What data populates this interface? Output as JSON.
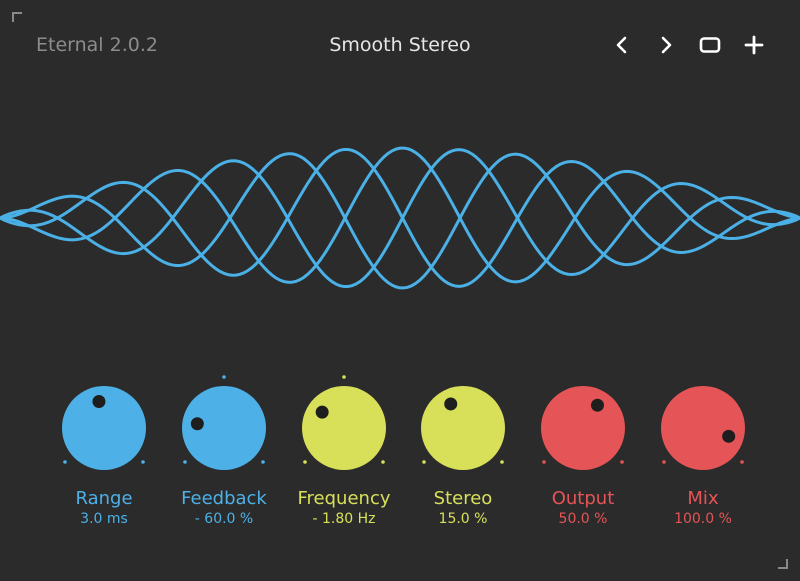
{
  "brand": "Eternal 2.0.2",
  "preset_name": "Smooth Stereo",
  "toolbar": {
    "prev_icon": "chevron-left-icon",
    "next_icon": "chevron-right-icon",
    "window_icon": "window-icon",
    "add_icon": "plus-icon"
  },
  "colors": {
    "background": "#2b2b2b",
    "blue": "#4db1e8",
    "yellow": "#d8e05a",
    "red": "#e55456",
    "wave": "#4ab0e6"
  },
  "knobs": [
    {
      "label": "Range",
      "value": "3.0 ms",
      "color": "blue",
      "level": 0.46,
      "bipolar": false
    },
    {
      "label": "Feedback",
      "value": "- 60.0 %",
      "color": "blue",
      "level": 0.2,
      "bipolar": true
    },
    {
      "label": "Frequency",
      "value": "- 1.80 Hz",
      "color": "yellow",
      "level": 0.3,
      "bipolar": true
    },
    {
      "label": "Stereo",
      "value": "15.0 %",
      "color": "yellow",
      "level": 0.4,
      "bipolar": false
    },
    {
      "label": "Output",
      "value": "50.0 %",
      "color": "red",
      "level": 0.62,
      "bipolar": false
    },
    {
      "label": "Mix",
      "value": "100.0 %",
      "color": "red",
      "level": 0.9,
      "bipolar": false
    }
  ]
}
